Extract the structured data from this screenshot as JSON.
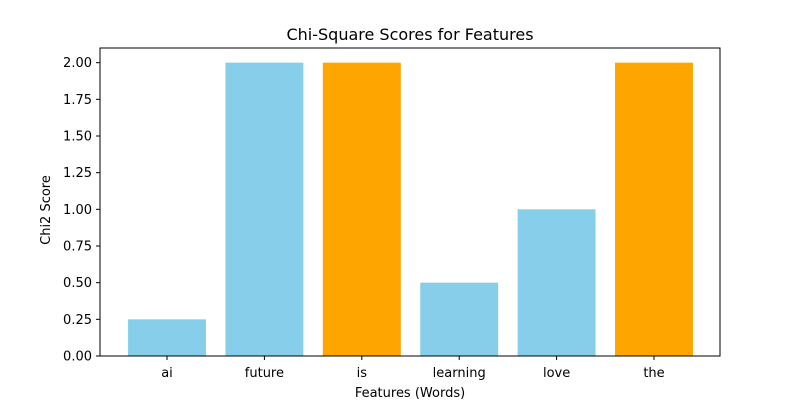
{
  "chart_data": {
    "type": "bar",
    "title": "Chi-Square Scores for Features",
    "xlabel": "Features (Words)",
    "ylabel": "Chi2 Score",
    "categories": [
      "ai",
      "future",
      "is",
      "learning",
      "love",
      "the"
    ],
    "values": [
      0.25,
      2.0,
      2.0,
      0.5,
      1.0,
      2.0
    ],
    "bar_colors": [
      "#87CEEB",
      "#87CEEB",
      "#FFA500",
      "#87CEEB",
      "#87CEEB",
      "#FFA500"
    ],
    "ylim": [
      0,
      2.1
    ],
    "yticks": [
      "0.00",
      "0.25",
      "0.50",
      "0.75",
      "1.00",
      "1.25",
      "1.50",
      "1.75",
      "2.00"
    ],
    "grid": false,
    "legend": "none"
  }
}
